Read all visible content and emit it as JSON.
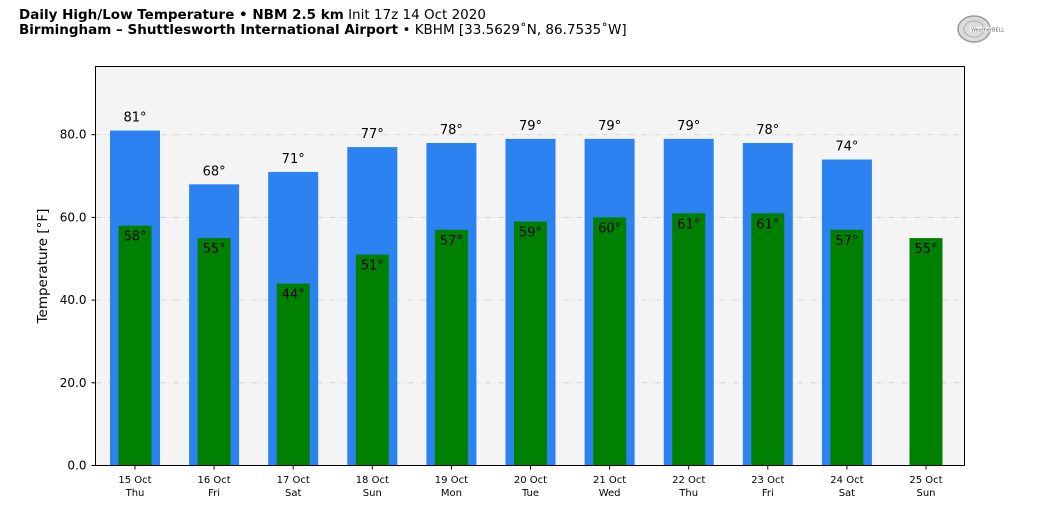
{
  "header": {
    "title_bold": "Daily High/Low Temperature • NBM 2.5 km",
    "title_init": "Init 17z 14 Oct 2020",
    "location_bold": "Birmingham – Shuttlesworth International Airport",
    "location_rest": "• KBHM [33.5629˚N, 86.7535˚W]"
  },
  "logo": {
    "text": "WeatherBELL",
    "icon": "weatherbell-logo-icon"
  },
  "colors": {
    "high": "#2b82f0",
    "low": "#008000",
    "plot_bg": "#f4f4f4",
    "grid": "#d0d0d0"
  },
  "chart_data": {
    "type": "bar",
    "categories": [
      {
        "date": "15 Oct",
        "day": "Thu"
      },
      {
        "date": "16 Oct",
        "day": "Fri"
      },
      {
        "date": "17 Oct",
        "day": "Sat"
      },
      {
        "date": "18 Oct",
        "day": "Sun"
      },
      {
        "date": "19 Oct",
        "day": "Mon"
      },
      {
        "date": "20 Oct",
        "day": "Tue"
      },
      {
        "date": "21 Oct",
        "day": "Wed"
      },
      {
        "date": "22 Oct",
        "day": "Thu"
      },
      {
        "date": "23 Oct",
        "day": "Fri"
      },
      {
        "date": "24 Oct",
        "day": "Sat"
      },
      {
        "date": "25 Oct",
        "day": "Sun"
      }
    ],
    "series": [
      {
        "key": "high",
        "values": [
          81,
          68,
          71,
          77,
          78,
          79,
          79,
          79,
          78,
          74,
          null
        ]
      },
      {
        "key": "low",
        "values": [
          58,
          55,
          44,
          51,
          57,
          59,
          60,
          61,
          61,
          57,
          55
        ]
      }
    ],
    "label_suffix": "°",
    "ylabel": "Temperature [°F]",
    "ylim": [
      0,
      96.5
    ],
    "yticks": [
      "0.0",
      "20.0",
      "40.0",
      "60.0",
      "80.0"
    ],
    "grid": true
  }
}
